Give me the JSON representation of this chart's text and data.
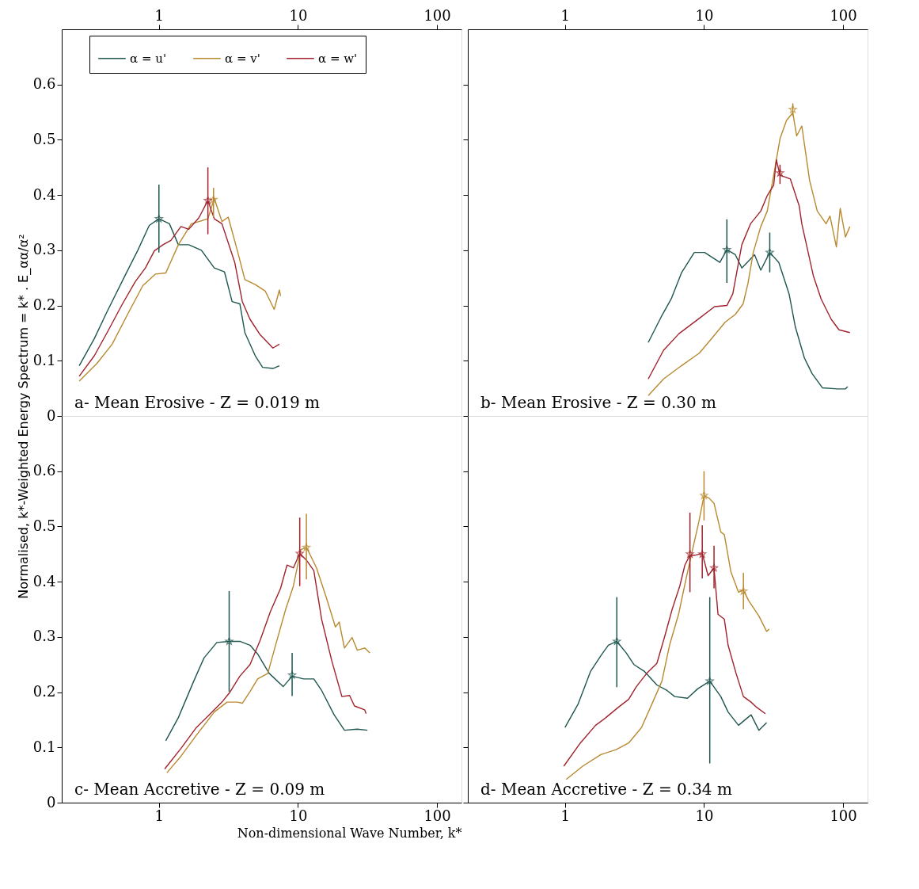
{
  "chart_data": [
    {
      "type": "line",
      "ylabel": "Normalised, k*-Weighted Energy Spectrum = k* . E_αα/α²",
      "annotations": [
        "a- Mean Erosive - Z = 0.019 m"
      ],
      "log": "x",
      "xlim": [
        0.2,
        150
      ],
      "ylim": [
        0,
        0.7
      ],
      "xticks": [
        1,
        10,
        100
      ],
      "yticks": [
        {
          "value": 0,
          "label": "0"
        },
        0.1,
        0.2,
        0.3,
        0.4,
        0.5,
        0.6
      ],
      "legend": "top",
      "line_style": "solid",
      "series": [
        {
          "name": "α = u'",
          "color": "#1f5650",
          "x": [
            0.267,
            0.343,
            0.424,
            0.57,
            0.705,
            0.852,
            1.0,
            1.19,
            1.38,
            1.64,
            2.02,
            2.5,
            2.96,
            3.36,
            3.82,
            4.15,
            4.93,
            5.57,
            6.61,
            7.35
          ],
          "values": [
            0.091,
            0.14,
            0.189,
            0.254,
            0.3,
            0.345,
            0.357,
            0.348,
            0.31,
            0.31,
            0.3,
            0.268,
            0.261,
            0.207,
            0.203,
            0.151,
            0.109,
            0.088,
            0.086,
            0.091
          ]
        },
        {
          "name": "α = v'",
          "color": "#b8892f",
          "x": [
            0.267,
            0.358,
            0.461,
            0.595,
            0.766,
            0.946,
            1.12,
            1.38,
            1.71,
            1.94,
            2.25,
            2.5,
            2.84,
            3.15,
            3.66,
            4.15,
            4.93,
            5.82,
            6.75,
            7.35,
            7.5
          ],
          "values": [
            0.063,
            0.095,
            0.13,
            0.184,
            0.236,
            0.257,
            0.259,
            0.31,
            0.348,
            0.352,
            0.357,
            0.394,
            0.352,
            0.36,
            0.3,
            0.247,
            0.238,
            0.226,
            0.193,
            0.228,
            0.217
          ]
        },
        {
          "name": "α = w'",
          "color": "#a0222c",
          "x": [
            0.267,
            0.343,
            0.424,
            0.547,
            0.675,
            0.8,
            0.927,
            1.07,
            1.22,
            1.44,
            1.64,
            1.94,
            2.25,
            2.5,
            2.84,
            3.51,
            3.98,
            4.52,
            5.35,
            6.61,
            7.35
          ],
          "values": [
            0.072,
            0.109,
            0.151,
            0.203,
            0.243,
            0.268,
            0.299,
            0.31,
            0.318,
            0.343,
            0.338,
            0.359,
            0.39,
            0.357,
            0.348,
            0.278,
            0.207,
            0.175,
            0.147,
            0.123,
            0.13
          ]
        },
        {
          "type": "scatter",
          "marker": "star",
          "color": "#1f5650",
          "x": [
            1.0
          ],
          "values": [
            0.357
          ],
          "errors": [
            [
              0.296,
              0.419
            ]
          ]
        },
        {
          "type": "scatter",
          "marker": "star",
          "color": "#b8892f",
          "x": [
            2.47
          ],
          "values": [
            0.392
          ],
          "errors": [
            [
              0.36,
              0.413
            ]
          ]
        },
        {
          "type": "scatter",
          "marker": "star",
          "color": "#a0222c",
          "x": [
            2.25
          ],
          "values": [
            0.39
          ],
          "errors": [
            [
              0.329,
              0.45
            ]
          ]
        }
      ]
    },
    {
      "type": "line",
      "annotations": [
        "b- Mean Erosive - Z = 0.30 m"
      ],
      "log": "x",
      "xlim": [
        0.2,
        150
      ],
      "ylim": [
        0,
        0.7
      ],
      "xticks": [
        1,
        10,
        100
      ],
      "yticks": [
        0,
        0.1,
        0.2,
        0.3,
        0.4,
        0.5,
        0.6
      ],
      "tick_labels": "x",
      "line_style": "solid",
      "series": [
        {
          "color": "#1f5650",
          "x": [
            3.97,
            4.91,
            5.81,
            6.88,
            8.51,
            10.1,
            13.0,
            14.6,
            16.8,
            18.7,
            23.1,
            25.6,
            29.7,
            34.5,
            40.9,
            45.4,
            52.7,
            59.8,
            71.0,
            91.5,
            104,
            108
          ],
          "values": [
            0.133,
            0.179,
            0.212,
            0.259,
            0.296,
            0.296,
            0.278,
            0.301,
            0.292,
            0.268,
            0.292,
            0.264,
            0.296,
            0.278,
            0.221,
            0.161,
            0.105,
            0.077,
            0.051,
            0.049,
            0.049,
            0.053
          ]
        },
        {
          "color": "#b8892f",
          "x": [
            3.97,
            5.12,
            6.88,
            9.27,
            11.5,
            14.2,
            16.8,
            19.1,
            20.7,
            22.6,
            25.6,
            28.5,
            31.7,
            35.2,
            39.2,
            43.5,
            46.4,
            50.5,
            57.4,
            65.2,
            75.5,
            80.5,
            89.5,
            95.4,
            104,
            112
          ],
          "values": [
            0.037,
            0.067,
            0.091,
            0.114,
            0.142,
            0.17,
            0.184,
            0.203,
            0.24,
            0.296,
            0.343,
            0.371,
            0.436,
            0.502,
            0.535,
            0.549,
            0.507,
            0.525,
            0.427,
            0.371,
            0.348,
            0.362,
            0.306,
            0.376,
            0.324,
            0.343
          ]
        },
        {
          "color": "#a0222c",
          "x": [
            3.97,
            5.12,
            6.6,
            9.27,
            11.9,
            14.6,
            16.1,
            18.7,
            21.6,
            25.6,
            28.5,
            31.7,
            33.1,
            35.2,
            41.8,
            48.4,
            50.5,
            61.1,
            69.5,
            82.2,
            93.5,
            112
          ],
          "values": [
            0.067,
            0.119,
            0.149,
            0.177,
            0.198,
            0.2,
            0.221,
            0.31,
            0.348,
            0.371,
            0.399,
            0.418,
            0.464,
            0.436,
            0.429,
            0.38,
            0.348,
            0.254,
            0.212,
            0.175,
            0.156,
            0.151
          ]
        },
        {
          "type": "scatter",
          "marker": "star",
          "color": "#1f5650",
          "x": [
            14.6,
            29.7
          ],
          "values": [
            0.301,
            0.296
          ],
          "errors": [
            [
              0.241,
              0.356
            ],
            [
              0.26,
              0.332
            ]
          ]
        },
        {
          "type": "scatter",
          "marker": "star",
          "color": "#b8892f",
          "x": [
            43.5
          ],
          "values": [
            0.555
          ],
          "errors": [
            [
              0.543,
              0.566
            ]
          ]
        },
        {
          "type": "scatter",
          "marker": "star",
          "color": "#a0222c",
          "x": [
            35.2
          ],
          "values": [
            0.44
          ],
          "errors": [
            [
              0.42,
              0.455
            ]
          ]
        }
      ]
    },
    {
      "type": "line",
      "xlabel": "Non-dimensional Wave Number, k*",
      "annotations": [
        "c- Mean Accretive - Z = 0.09 m"
      ],
      "log": "x",
      "xlim": [
        0.2,
        150
      ],
      "ylim": [
        0,
        0.7
      ],
      "xticks": [
        1,
        10,
        100
      ],
      "yticks": [
        {
          "value": 0,
          "label": "0"
        },
        0.1,
        0.2,
        0.3,
        0.4,
        0.5,
        0.6
      ],
      "line_style": "solid",
      "series": [
        {
          "color": "#1f5650",
          "x": [
            1.12,
            1.38,
            1.78,
            2.11,
            2.61,
            3.2,
            3.82,
            4.52,
            5.13,
            6.21,
            7.83,
            9.08,
            11.0,
            13.0,
            14.8,
            18.2,
            21.6,
            26.7,
            31.6
          ],
          "values": [
            0.112,
            0.154,
            0.22,
            0.262,
            0.29,
            0.292,
            0.292,
            0.285,
            0.269,
            0.234,
            0.21,
            0.229,
            0.224,
            0.224,
            0.203,
            0.159,
            0.131,
            0.133,
            0.131
          ]
        },
        {
          "color": "#b8892f",
          "x": [
            1.14,
            1.44,
            1.86,
            2.5,
            3.09,
            3.66,
            3.98,
            4.52,
            5.13,
            6.07,
            6.9,
            8.16,
            9.27,
            10.5,
            11.5,
            12.5,
            13.6,
            16.1,
            18.6,
            19.8,
            21.6,
            24.5,
            26.7,
            30.2,
            32.9
          ],
          "values": [
            0.054,
            0.084,
            0.122,
            0.164,
            0.182,
            0.182,
            0.18,
            0.201,
            0.224,
            0.234,
            0.285,
            0.35,
            0.392,
            0.458,
            0.462,
            0.444,
            0.425,
            0.369,
            0.318,
            0.327,
            0.28,
            0.299,
            0.276,
            0.28,
            0.271
          ]
        },
        {
          "color": "#a0222c",
          "x": [
            1.1,
            1.44,
            1.86,
            2.3,
            2.84,
            3.22,
            3.82,
            4.52,
            5.35,
            6.34,
            7.5,
            8.34,
            9.27,
            10.3,
            11.5,
            13.0,
            14.8,
            17.5,
            20.7,
            23.5,
            25.5,
            30.2,
            30.9
          ],
          "values": [
            0.061,
            0.098,
            0.136,
            0.159,
            0.182,
            0.199,
            0.229,
            0.25,
            0.294,
            0.346,
            0.388,
            0.43,
            0.425,
            0.451,
            0.439,
            0.42,
            0.332,
            0.257,
            0.192,
            0.194,
            0.175,
            0.168,
            0.161
          ]
        },
        {
          "type": "scatter",
          "marker": "star",
          "color": "#1f5650",
          "x": [
            3.2,
            9.08
          ],
          "values": [
            0.292,
            0.231
          ],
          "errors": [
            [
              0.201,
              0.383
            ],
            [
              0.193,
              0.271
            ]
          ]
        },
        {
          "type": "scatter",
          "marker": "star",
          "color": "#b8892f",
          "x": [
            11.5
          ],
          "values": [
            0.462
          ],
          "errors": [
            [
              0.404,
              0.523
            ]
          ]
        },
        {
          "type": "scatter",
          "marker": "star",
          "color": "#a0222c",
          "x": [
            10.3
          ],
          "values": [
            0.451
          ],
          "errors": [
            [
              0.392,
              0.516
            ]
          ]
        }
      ]
    },
    {
      "type": "line",
      "annotations": [
        "d- Mean Accretive - Z = 0.34 m"
      ],
      "log": "x",
      "xlim": [
        0.2,
        150
      ],
      "ylim": [
        0,
        0.7
      ],
      "xticks": [
        1,
        10,
        100
      ],
      "yticks": [
        0,
        0.1,
        0.2,
        0.3,
        0.4,
        0.5,
        0.6
      ],
      "tick_labels": "x",
      "line_style": "solid",
      "series": [
        {
          "color": "#1f5650",
          "x": [
            1.0,
            1.24,
            1.53,
            1.81,
            2.05,
            2.36,
            2.76,
            3.13,
            3.71,
            4.58,
            5.42,
            6.15,
            7.6,
            9.0,
            11.0,
            13.2,
            14.9,
            17.7,
            21.8,
            24.8,
            28.2
          ],
          "values": [
            0.136,
            0.178,
            0.238,
            0.266,
            0.285,
            0.292,
            0.271,
            0.25,
            0.238,
            0.213,
            0.203,
            0.192,
            0.189,
            0.206,
            0.22,
            0.192,
            0.164,
            0.14,
            0.159,
            0.131,
            0.145
          ]
        },
        {
          "color": "#b8892f",
          "x": [
            1.02,
            1.34,
            1.81,
            2.33,
            2.87,
            3.55,
            4.21,
            4.98,
            5.65,
            6.56,
            7.44,
            8.27,
            9.19,
            10.0,
            10.9,
            11.8,
            13.2,
            14.0,
            15.6,
            17.7,
            19.2,
            20.9,
            24.8,
            28.2,
            29.4
          ],
          "values": [
            0.042,
            0.066,
            0.087,
            0.096,
            0.108,
            0.136,
            0.178,
            0.22,
            0.285,
            0.341,
            0.406,
            0.458,
            0.509,
            0.556,
            0.551,
            0.542,
            0.49,
            0.485,
            0.418,
            0.381,
            0.385,
            0.366,
            0.338,
            0.31,
            0.314
          ]
        },
        {
          "color": "#a0222c",
          "x": [
            0.98,
            1.29,
            1.66,
            1.97,
            2.43,
            2.87,
            3.26,
            3.87,
            4.58,
            5.19,
            5.9,
            6.69,
            7.28,
            7.92,
            8.62,
            9.71,
            10.7,
            11.8,
            12.6,
            14.0,
            14.9,
            17.0,
            19.2,
            21.8,
            23.8,
            27.6
          ],
          "values": [
            0.066,
            0.108,
            0.14,
            0.154,
            0.173,
            0.187,
            0.21,
            0.234,
            0.252,
            0.299,
            0.35,
            0.392,
            0.43,
            0.448,
            0.448,
            0.451,
            0.411,
            0.425,
            0.341,
            0.332,
            0.285,
            0.234,
            0.192,
            0.182,
            0.173,
            0.161
          ]
        },
        {
          "type": "scatter",
          "marker": "star",
          "color": "#1f5650",
          "x": [
            2.36,
            11.0
          ],
          "values": [
            0.292,
            0.22
          ],
          "errors": [
            [
              0.209,
              0.372
            ],
            [
              0.071,
              0.372
            ]
          ]
        },
        {
          "type": "scatter",
          "marker": "star",
          "color": "#b8892f",
          "x": [
            10.0,
            19.2
          ],
          "values": [
            0.556,
            0.383
          ],
          "errors": [
            [
              0.511,
              0.6
            ],
            [
              0.35,
              0.416
            ]
          ]
        },
        {
          "type": "scatter",
          "marker": "star",
          "color": "#a0222c",
          "x": [
            7.92,
            9.71,
            11.8
          ],
          "values": [
            0.45,
            0.45,
            0.425
          ],
          "errors": [
            [
              0.381,
              0.525
            ],
            [
              0.406,
              0.502
            ],
            [
              0.388,
              0.465
            ]
          ]
        }
      ]
    }
  ]
}
